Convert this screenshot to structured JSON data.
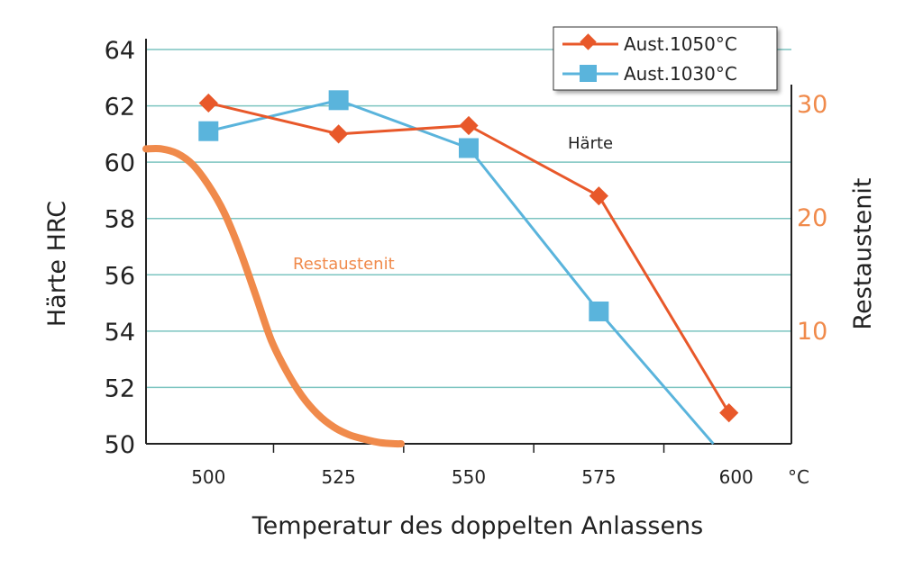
{
  "chart_data": {
    "type": "line",
    "xlabel": "Temperatur des doppelten Anlassens",
    "x_unit": "°C",
    "ylabel": "Härte  HRC",
    "y2label": "Restaustenit",
    "x_ticks": [
      "500",
      "525",
      "550",
      "575",
      "600"
    ],
    "y_ticks": [
      "50",
      "52",
      "54",
      "56",
      "58",
      "60",
      "62",
      "64"
    ],
    "y2_ticks": [
      "10",
      "20",
      "30"
    ],
    "xlim": [
      488,
      612
    ],
    "ylim": [
      50,
      64
    ],
    "y2lim": [
      0,
      30
    ],
    "grid": true,
    "legend_position": "top-right",
    "colors": {
      "aust1050": "#e8582a",
      "aust1030": "#5ab4dc",
      "restaustenit": "#f08a4b",
      "grid": "#7cc4c0",
      "axis": "#222222"
    },
    "series": [
      {
        "name": "Aust.1050°C",
        "marker": "diamond",
        "x": [
          500,
          525,
          550,
          575,
          600
        ],
        "y": [
          62.1,
          61.0,
          61.3,
          58.8,
          51.1
        ]
      },
      {
        "name": "Aust.1030°C",
        "marker": "square",
        "x": [
          500,
          525,
          550,
          575,
          597
        ],
        "y": [
          61.1,
          62.2,
          60.5,
          54.7,
          50.0
        ],
        "markers_at": [
          500,
          525,
          550,
          575
        ]
      }
    ],
    "restaustenit_curve": {
      "name": "Restaustenit",
      "axis": "right",
      "x": [
        488,
        491,
        494,
        497,
        500,
        503,
        506,
        509,
        512,
        515,
        518,
        521,
        524,
        527,
        530,
        533,
        536,
        537
      ],
      "y": [
        26.0,
        26.0,
        25.6,
        24.6,
        22.8,
        20.4,
        17.1,
        13.2,
        9.2,
        6.4,
        4.2,
        2.6,
        1.5,
        0.8,
        0.4,
        0.1,
        0.0,
        0.0
      ]
    },
    "annotations": {
      "haerte": "Härte",
      "restaustenit": "Restaustenit"
    }
  }
}
